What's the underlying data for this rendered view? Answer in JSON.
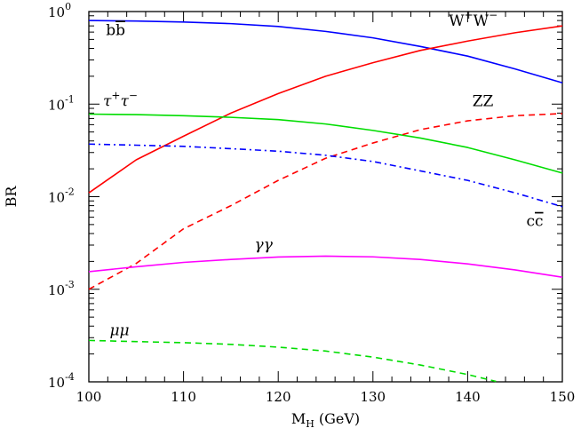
{
  "chart_data": {
    "type": "line",
    "xlabel": "M_H (GeV)",
    "ylabel": "BR",
    "xlim": [
      100,
      150
    ],
    "ylim": [
      0.0001,
      1
    ],
    "yscale": "log",
    "x_ticks": [
      "100",
      "110",
      "120",
      "130",
      "140",
      "150"
    ],
    "y_ticks": [
      {
        "base": "10",
        "exp": "-4"
      },
      {
        "base": "10",
        "exp": "-3"
      },
      {
        "base": "10",
        "exp": "-2"
      },
      {
        "base": "10",
        "exp": "-1"
      },
      {
        "base": "10",
        "exp": "0"
      }
    ],
    "series": [
      {
        "name": "bb̄",
        "color": "#0000ff",
        "dash": "solid",
        "x": [
          100,
          105,
          110,
          115,
          120,
          125,
          130,
          135,
          140,
          145,
          150
        ],
        "y": [
          0.8,
          0.79,
          0.77,
          0.74,
          0.69,
          0.61,
          0.52,
          0.42,
          0.33,
          0.24,
          0.17
        ]
      },
      {
        "name": "W⁺W⁻",
        "color": "#ff0000",
        "dash": "solid",
        "x": [
          100,
          105,
          110,
          115,
          120,
          125,
          130,
          135,
          140,
          145,
          150
        ],
        "y": [
          0.011,
          0.025,
          0.045,
          0.08,
          0.13,
          0.2,
          0.28,
          0.38,
          0.48,
          0.59,
          0.7
        ]
      },
      {
        "name": "τ⁺τ⁻",
        "color": "#00dd00",
        "dash": "solid",
        "x": [
          100,
          105,
          110,
          115,
          120,
          125,
          130,
          135,
          140,
          145,
          150
        ],
        "y": [
          0.078,
          0.077,
          0.075,
          0.072,
          0.068,
          0.061,
          0.052,
          0.043,
          0.034,
          0.025,
          0.018
        ]
      },
      {
        "name": "ZZ",
        "color": "#ff0000",
        "dash": "dashed",
        "x": [
          100,
          105,
          110,
          115,
          120,
          125,
          130,
          135,
          140,
          145,
          150
        ],
        "y": [
          0.001,
          0.0019,
          0.0045,
          0.008,
          0.015,
          0.026,
          0.038,
          0.053,
          0.066,
          0.075,
          0.079
        ]
      },
      {
        "name": "cc̄",
        "color": "#0000ff",
        "dash": "dashdot",
        "x": [
          100,
          105,
          110,
          115,
          120,
          125,
          130,
          135,
          140,
          145,
          150
        ],
        "y": [
          0.037,
          0.036,
          0.035,
          0.033,
          0.031,
          0.028,
          0.024,
          0.019,
          0.015,
          0.011,
          0.0078
        ]
      },
      {
        "name": "γγ",
        "color": "#ff00ff",
        "dash": "solid",
        "x": [
          100,
          105,
          110,
          115,
          120,
          125,
          130,
          135,
          140,
          145,
          150
        ],
        "y": [
          0.00155,
          0.00175,
          0.00195,
          0.0021,
          0.00223,
          0.00228,
          0.00224,
          0.0021,
          0.00188,
          0.00162,
          0.00135
        ]
      },
      {
        "name": "μμ",
        "color": "#00dd00",
        "dash": "dashed",
        "x": [
          100,
          105,
          110,
          115,
          120,
          125,
          130,
          135,
          140,
          143
        ],
        "y": [
          0.00028,
          0.000272,
          0.000265,
          0.000254,
          0.000237,
          0.000215,
          0.000185,
          0.000152,
          0.00012,
          0.000101
        ]
      }
    ],
    "labels": [
      {
        "series": 0,
        "text": "bb",
        "overline": "b",
        "x": 101.8,
        "y": 0.56
      },
      {
        "series": 1,
        "text": "W",
        "sup1": "+",
        "text2": "W",
        "sup2": "−",
        "x": 138.0,
        "y": 0.7
      },
      {
        "series": 2,
        "text": "τ",
        "sup1": "+",
        "text2": "τ",
        "sup2": "−",
        "x": 101.5,
        "y": 0.095
      },
      {
        "series": 3,
        "text": "ZZ",
        "x": 140.5,
        "y": 0.095
      },
      {
        "series": 4,
        "text": "cc",
        "overline": "c",
        "x": 146.2,
        "y": 0.0048
      },
      {
        "series": 5,
        "text": "γγ",
        "x": 117.5,
        "y": 0.0027
      },
      {
        "series": 6,
        "text": "μμ",
        "x": 102.2,
        "y": 0.00032
      }
    ]
  }
}
